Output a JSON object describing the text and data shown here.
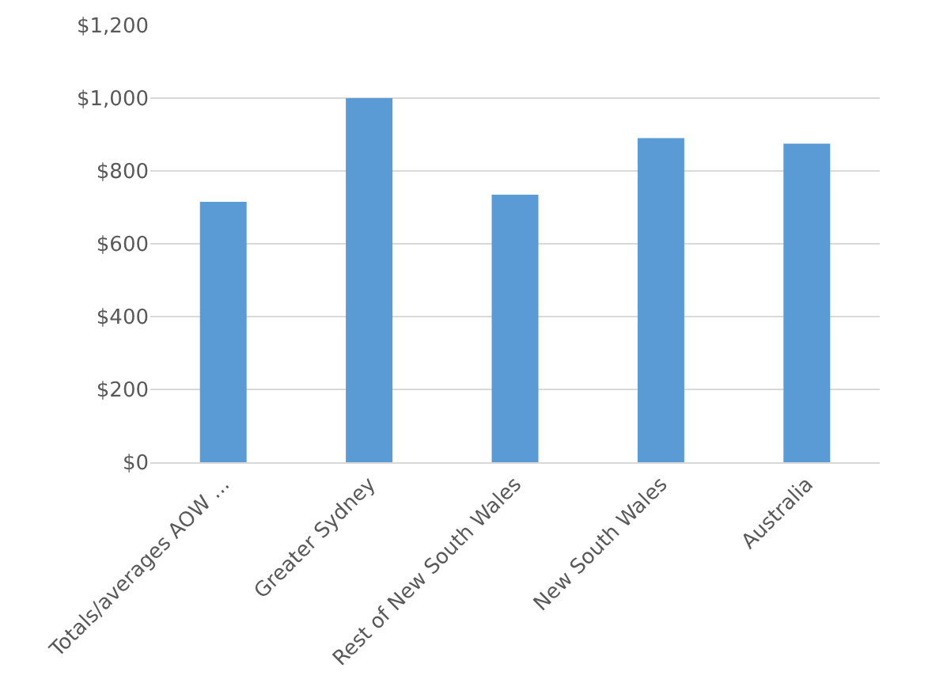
{
  "chart_data": {
    "type": "bar",
    "categories": [
      "Totals/averages AOW ...",
      "Greater Sydney",
      "Rest of New South Wales",
      "New South Wales",
      "Australia"
    ],
    "values": [
      715,
      1000,
      735,
      890,
      875
    ],
    "color": "#5b9bd5",
    "ylim": [
      0,
      1200
    ],
    "yticks": [
      {
        "value": 0,
        "label": "$0"
      },
      {
        "value": 200,
        "label": "$200"
      },
      {
        "value": 400,
        "label": "$400"
      },
      {
        "value": 600,
        "label": "$600"
      },
      {
        "value": 800,
        "label": "$800"
      },
      {
        "value": 1000,
        "label": "$1,000"
      },
      {
        "value": 1200,
        "label": "$1,200"
      }
    ],
    "grid": "y"
  }
}
